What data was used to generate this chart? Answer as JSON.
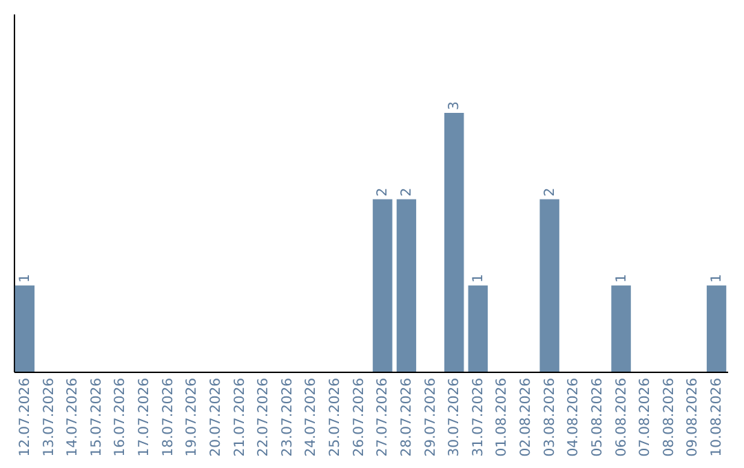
{
  "chart_data": {
    "type": "bar",
    "categories": [
      "12.07.2026",
      "13.07.2026",
      "14.07.2026",
      "15.07.2026",
      "16.07.2026",
      "17.07.2026",
      "18.07.2026",
      "19.07.2026",
      "20.07.2026",
      "21.07.2026",
      "22.07.2026",
      "23.07.2026",
      "24.07.2026",
      "25.07.2026",
      "26.07.2026",
      "27.07.2026",
      "28.07.2026",
      "29.07.2026",
      "30.07.2026",
      "31.07.2026",
      "01.08.2026",
      "02.08.2026",
      "03.08.2026",
      "04.08.2026",
      "05.08.2026",
      "06.08.2026",
      "07.08.2026",
      "08.08.2026",
      "09.08.2026",
      "10.08.2026"
    ],
    "values": [
      1,
      0,
      0,
      0,
      0,
      0,
      0,
      0,
      0,
      0,
      0,
      0,
      0,
      0,
      0,
      2,
      2,
      0,
      3,
      1,
      0,
      0,
      2,
      0,
      0,
      1,
      0,
      0,
      0,
      1
    ],
    "value_labels": [
      "1",
      null,
      null,
      null,
      null,
      null,
      null,
      null,
      null,
      null,
      null,
      null,
      null,
      null,
      null,
      "2",
      "2",
      null,
      "3",
      "1",
      null,
      null,
      "2",
      null,
      null,
      "1",
      null,
      null,
      null,
      "1"
    ],
    "color": "#6b8cab",
    "ylim": [
      0,
      4.15
    ],
    "tick_labels": "x"
  }
}
